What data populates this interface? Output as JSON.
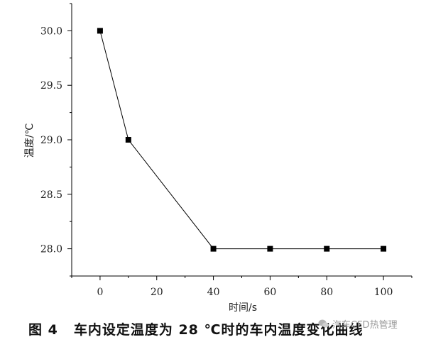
{
  "chart_data": {
    "type": "line",
    "x": [
      0,
      10,
      40,
      60,
      80,
      100
    ],
    "series": [
      {
        "values": [
          30.0,
          29.0,
          28.0,
          28.0,
          28.0,
          28.0
        ]
      }
    ],
    "xlabel": "时间/s",
    "ylabel": "温度/℃",
    "xlim": [
      -10,
      110
    ],
    "ylim": [
      27.75,
      30.25
    ],
    "xticks": [
      "0",
      "20",
      "40",
      "60",
      "80",
      "100"
    ],
    "yticks": [
      "28.0",
      "28.5",
      "29.0",
      "29.5",
      "30.0"
    ],
    "marker": "square",
    "grid": false,
    "colors": {
      "line": "#000000",
      "marker": "#000000"
    }
  },
  "caption": {
    "figure_number": "图 4",
    "text": "车内设定温度为 28 ℃时的车内温度变化曲线"
  },
  "watermark": {
    "icon": "wechat-icon",
    "text": "汽车CFD热管理"
  }
}
